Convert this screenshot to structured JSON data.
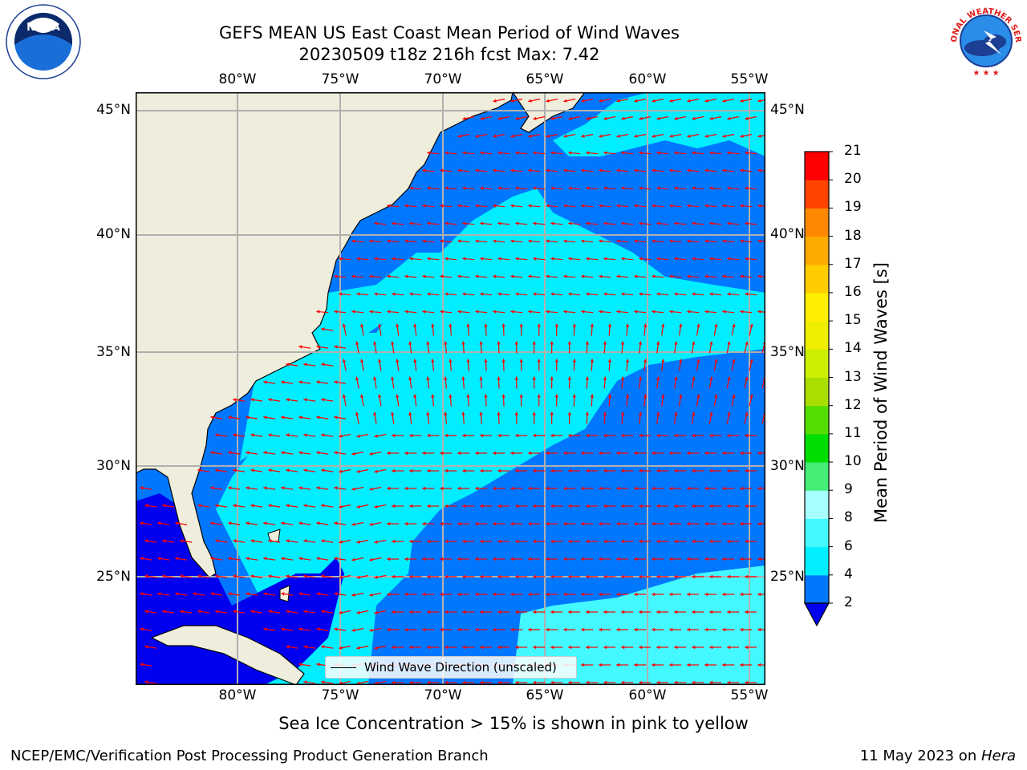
{
  "title": {
    "line1": "GEFS MEAN US East Coast Mean Period of Wind Waves",
    "line2": "20230509 t18z 216h fcst   Max: 7.42"
  },
  "logos": {
    "left": "NOAA",
    "left_ring": "NATIONAL OCEANIC AND ATMOSPHERIC ADMINISTRATION · U.S. DEPARTMENT OF COMMERCE",
    "right": "NATIONAL WEATHER SERVICE"
  },
  "map": {
    "lon_labels": [
      "80°W",
      "75°W",
      "70°W",
      "65°W",
      "60°W",
      "55°W"
    ],
    "lat_labels": [
      "45°N",
      "40°N",
      "35°N",
      "30°N",
      "25°N"
    ],
    "lon_range": [
      -85,
      -54.3
    ],
    "lat_range": [
      20.5,
      46
    ],
    "grid": true,
    "land_color": "#efeedc",
    "arrow_color": "#ff0000"
  },
  "legend": {
    "label": "Wind Wave Direction (unscaled)"
  },
  "colorbar": {
    "label": "Mean Period of Wind Waves [s]",
    "ticks": [
      "2",
      "4",
      "6",
      "8",
      "9",
      "10",
      "11",
      "12",
      "13",
      "14",
      "15",
      "16",
      "17",
      "18",
      "19",
      "20",
      "21"
    ],
    "colors": [
      "#0000ee",
      "#0077ff",
      "#00eeff",
      "#44f8ff",
      "#a8ffff",
      "#44ee77",
      "#00dd00",
      "#55dd00",
      "#aadd00",
      "#ccee00",
      "#eeee00",
      "#ffee00",
      "#ffcc00",
      "#ffaa00",
      "#ff8800",
      "#ff4400",
      "#ff0000"
    ]
  },
  "subtitle": "Sea Ice Concentration > 15% is shown in pink to yellow",
  "footer": {
    "left": "NCEP/EMC/Verification Post Processing Product Generation Branch",
    "right_prefix": "11 May 2023 on ",
    "right_italic": "Hera"
  }
}
